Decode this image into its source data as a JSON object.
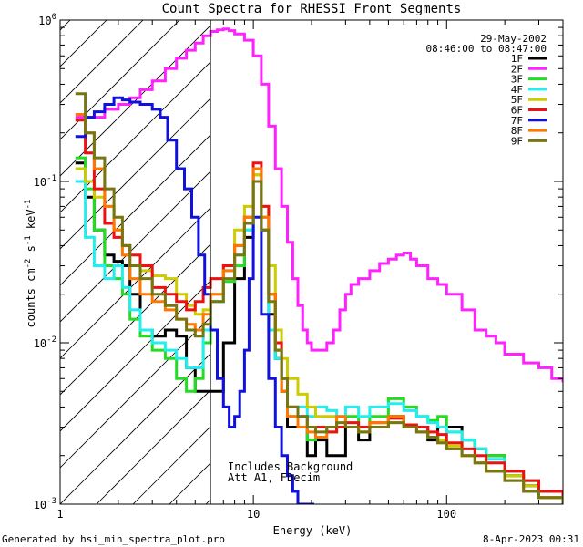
{
  "footer": {
    "left": "Generated by hsi_min_spectra_plot.pro",
    "right": "8-Apr-2023 00:31"
  },
  "colors": {
    "1F": "#000000",
    "2F": "#ff22ff",
    "3F": "#22dd22",
    "4F": "#22eeee",
    "5F": "#cccc00",
    "6F": "#ee1111",
    "7F": "#1111dd",
    "8F": "#ff7700",
    "9F": "#777711"
  },
  "chart_data": {
    "type": "line",
    "title": "Count Spectra for RHESSI Front Segments",
    "xlabel": "Energy (keV)",
    "ylabel": "counts cm",
    "ylabel_parts": {
      "base": "counts cm",
      "e1": "-2",
      "mid": " s",
      "e2": "-1",
      "mid2": " keV",
      "e3": "-1"
    },
    "x_scale": "log",
    "y_scale": "log",
    "xlim": [
      1,
      400
    ],
    "ylim": [
      0.001,
      1.0
    ],
    "x_ticks": [
      {
        "v": 1,
        "label": "1"
      },
      {
        "v": 10,
        "label": "10"
      },
      {
        "v": 100,
        "label": "100"
      }
    ],
    "y_ticks": [
      {
        "v": 0.001,
        "base": "10",
        "exp": "-3"
      },
      {
        "v": 0.01,
        "base": "10",
        "exp": "-2"
      },
      {
        "v": 0.1,
        "base": "10",
        "exp": "-1"
      },
      {
        "v": 1.0,
        "base": "10",
        "exp": "0"
      }
    ],
    "legend_header": [
      "29-May-2002",
      "08:46:00 to 08:47:00"
    ],
    "legend_placement": "top-right",
    "annotations": [
      "Includes Background",
      "Att A1, FDecim"
    ],
    "hatched_region_upper_x": 6,
    "series": [
      {
        "name": "1F",
        "x": [
          1.2,
          1.35,
          1.5,
          1.7,
          1.9,
          2.1,
          2.3,
          2.6,
          3.0,
          3.5,
          4.0,
          4.5,
          5.0,
          5.5,
          6.0,
          7,
          8,
          9,
          10,
          11,
          12,
          13,
          14,
          15,
          17,
          19,
          21,
          24,
          27,
          30,
          35,
          40,
          50,
          60,
          70,
          80,
          90,
          100,
          120,
          140,
          160,
          200,
          250,
          300,
          400
        ],
        "y": [
          0.13,
          0.08,
          0.05,
          0.035,
          0.032,
          0.03,
          0.02,
          0.012,
          0.011,
          0.012,
          0.011,
          0.007,
          0.005,
          0.005,
          0.005,
          0.01,
          0.025,
          0.045,
          0.1,
          0.05,
          0.015,
          0.008,
          0.005,
          0.003,
          0.003,
          0.002,
          0.0025,
          0.002,
          0.002,
          0.003,
          0.0025,
          0.003,
          0.0035,
          0.003,
          0.003,
          0.0025,
          0.003,
          0.003,
          0.0025,
          0.0022,
          0.002,
          0.0015,
          0.0013,
          0.0011,
          0.001
        ]
      },
      {
        "name": "2F",
        "x": [
          1.2,
          1.35,
          1.5,
          1.7,
          2.0,
          2.3,
          2.6,
          3.0,
          3.5,
          4.0,
          4.5,
          5.0,
          5.5,
          6.0,
          6.5,
          7.0,
          7.5,
          8,
          9,
          10,
          11,
          12,
          13,
          14,
          15,
          16,
          17,
          18,
          19,
          20,
          22,
          24,
          26,
          28,
          30,
          32,
          35,
          40,
          45,
          50,
          55,
          60,
          65,
          70,
          80,
          90,
          100,
          120,
          140,
          160,
          180,
          200,
          250,
          300,
          350,
          400
        ],
        "y": [
          0.25,
          0.25,
          0.25,
          0.28,
          0.3,
          0.33,
          0.37,
          0.42,
          0.5,
          0.58,
          0.65,
          0.72,
          0.8,
          0.85,
          0.87,
          0.88,
          0.86,
          0.82,
          0.75,
          0.6,
          0.4,
          0.22,
          0.12,
          0.07,
          0.042,
          0.025,
          0.017,
          0.012,
          0.01,
          0.009,
          0.009,
          0.01,
          0.012,
          0.016,
          0.02,
          0.023,
          0.025,
          0.028,
          0.031,
          0.033,
          0.035,
          0.036,
          0.033,
          0.03,
          0.025,
          0.023,
          0.02,
          0.016,
          0.012,
          0.011,
          0.01,
          0.0085,
          0.0075,
          0.007,
          0.006,
          0.0058
        ]
      },
      {
        "name": "3F",
        "x": [
          1.2,
          1.35,
          1.5,
          1.7,
          1.9,
          2.1,
          2.3,
          2.6,
          3.0,
          3.5,
          4.0,
          4.5,
          5.0,
          5.5,
          6.0,
          7,
          8,
          9,
          10,
          11,
          12,
          13,
          14,
          15,
          17,
          19,
          21,
          24,
          27,
          30,
          35,
          40,
          50,
          60,
          70,
          80,
          90,
          100,
          120,
          140,
          160,
          200,
          250,
          300,
          400
        ],
        "y": [
          0.14,
          0.09,
          0.05,
          0.03,
          0.025,
          0.02,
          0.014,
          0.011,
          0.009,
          0.008,
          0.006,
          0.005,
          0.006,
          0.01,
          0.018,
          0.024,
          0.03,
          0.05,
          0.11,
          0.06,
          0.02,
          0.009,
          0.005,
          0.0035,
          0.003,
          0.0025,
          0.003,
          0.0028,
          0.003,
          0.0035,
          0.003,
          0.0035,
          0.0045,
          0.004,
          0.0035,
          0.0033,
          0.0035,
          0.0028,
          0.0025,
          0.0022,
          0.002,
          0.0015,
          0.0014,
          0.0012,
          0.001
        ]
      },
      {
        "name": "4F",
        "x": [
          1.2,
          1.35,
          1.5,
          1.7,
          1.9,
          2.1,
          2.3,
          2.6,
          3.0,
          3.5,
          4.0,
          4.5,
          5.0,
          5.5,
          6.0,
          7,
          8,
          9,
          10,
          11,
          12,
          13,
          14,
          15,
          17,
          19,
          21,
          24,
          27,
          30,
          35,
          40,
          50,
          60,
          70,
          80,
          90,
          100,
          120,
          140,
          160,
          200,
          250,
          300,
          400
        ],
        "y": [
          0.1,
          0.045,
          0.03,
          0.025,
          0.03,
          0.022,
          0.016,
          0.012,
          0.01,
          0.009,
          0.008,
          0.007,
          0.007,
          0.012,
          0.018,
          0.028,
          0.035,
          0.05,
          0.1,
          0.05,
          0.012,
          0.008,
          0.006,
          0.004,
          0.004,
          0.0035,
          0.004,
          0.0038,
          0.0035,
          0.004,
          0.0035,
          0.004,
          0.0042,
          0.0038,
          0.0035,
          0.0032,
          0.003,
          0.0028,
          0.0025,
          0.0022,
          0.0019,
          0.0016,
          0.0014,
          0.0012,
          0.001
        ]
      },
      {
        "name": "5F",
        "x": [
          1.2,
          1.35,
          1.5,
          1.7,
          1.9,
          2.1,
          2.3,
          2.6,
          3.0,
          3.5,
          4.0,
          4.5,
          5.0,
          5.5,
          6.0,
          7,
          8,
          9,
          10,
          11,
          12,
          13,
          14,
          15,
          17,
          19,
          21,
          24,
          27,
          30,
          35,
          40,
          50,
          60,
          70,
          80,
          90,
          100,
          120,
          140,
          160,
          200,
          250,
          300,
          400
        ],
        "y": [
          0.12,
          0.1,
          0.08,
          0.07,
          0.05,
          0.04,
          0.03,
          0.028,
          0.026,
          0.025,
          0.02,
          0.017,
          0.015,
          0.016,
          0.02,
          0.03,
          0.05,
          0.07,
          0.11,
          0.07,
          0.03,
          0.012,
          0.008,
          0.006,
          0.0048,
          0.004,
          0.0035,
          0.0035,
          0.003,
          0.003,
          0.0028,
          0.003,
          0.0032,
          0.003,
          0.0028,
          0.0026,
          0.0025,
          0.0023,
          0.002,
          0.0018,
          0.0016,
          0.0015,
          0.0013,
          0.0011,
          0.001
        ]
      },
      {
        "name": "6F",
        "x": [
          1.2,
          1.35,
          1.5,
          1.7,
          1.9,
          2.1,
          2.3,
          2.6,
          3.0,
          3.5,
          4.0,
          4.5,
          5.0,
          5.5,
          6.0,
          7,
          8,
          9,
          10,
          11,
          12,
          13,
          14,
          15,
          17,
          19,
          21,
          24,
          27,
          30,
          35,
          40,
          50,
          60,
          70,
          80,
          90,
          100,
          120,
          140,
          160,
          200,
          250,
          300,
          400
        ],
        "y": [
          0.24,
          0.15,
          0.09,
          0.055,
          0.045,
          0.04,
          0.035,
          0.03,
          0.022,
          0.02,
          0.018,
          0.016,
          0.018,
          0.022,
          0.025,
          0.03,
          0.04,
          0.06,
          0.13,
          0.07,
          0.02,
          0.01,
          0.006,
          0.004,
          0.0035,
          0.003,
          0.003,
          0.0028,
          0.003,
          0.0032,
          0.003,
          0.0032,
          0.0034,
          0.0031,
          0.003,
          0.0028,
          0.0027,
          0.0024,
          0.0022,
          0.002,
          0.0018,
          0.0016,
          0.0014,
          0.0012,
          0.001
        ]
      },
      {
        "name": "7F",
        "x": [
          1.2,
          1.35,
          1.5,
          1.7,
          1.9,
          2.1,
          2.3,
          2.6,
          3.0,
          3.3,
          3.6,
          4.0,
          4.4,
          4.8,
          5.2,
          5.6,
          6.0,
          6.5,
          7.0,
          7.5,
          8.0,
          8.5,
          9,
          9.5,
          10,
          11,
          12,
          13,
          14,
          15,
          16,
          17,
          18,
          19,
          20
        ],
        "y": [
          0.19,
          0.25,
          0.27,
          0.3,
          0.33,
          0.32,
          0.31,
          0.3,
          0.28,
          0.25,
          0.18,
          0.12,
          0.09,
          0.06,
          0.035,
          0.02,
          0.012,
          0.006,
          0.004,
          0.003,
          0.0035,
          0.005,
          0.009,
          0.025,
          0.06,
          0.015,
          0.006,
          0.003,
          0.002,
          0.0015,
          0.0012,
          0.001,
          0.001,
          0.001,
          0.001
        ]
      },
      {
        "name": "8F",
        "x": [
          1.2,
          1.35,
          1.5,
          1.7,
          1.9,
          2.1,
          2.3,
          2.6,
          3.0,
          3.5,
          4.0,
          4.5,
          5.0,
          5.5,
          6.0,
          7,
          8,
          9,
          10,
          11,
          12,
          13,
          14,
          15,
          17,
          19,
          21,
          24,
          27,
          30,
          35,
          40,
          50,
          60,
          70,
          80,
          90,
          100,
          120,
          140,
          160,
          200,
          250,
          300,
          400
        ],
        "y": [
          0.26,
          0.2,
          0.12,
          0.07,
          0.05,
          0.035,
          0.025,
          0.02,
          0.018,
          0.016,
          0.014,
          0.013,
          0.012,
          0.015,
          0.02,
          0.028,
          0.04,
          0.06,
          0.12,
          0.06,
          0.02,
          0.009,
          0.005,
          0.0035,
          0.003,
          0.0028,
          0.0026,
          0.003,
          0.0035,
          0.003,
          0.0028,
          0.0032,
          0.0035,
          0.003,
          0.0028,
          0.0026,
          0.0024,
          0.0022,
          0.002,
          0.0018,
          0.0016,
          0.0014,
          0.0012,
          0.0011,
          0.001
        ]
      },
      {
        "name": "9F",
        "x": [
          1.2,
          1.35,
          1.5,
          1.7,
          1.9,
          2.1,
          2.3,
          2.6,
          3.0,
          3.5,
          4.0,
          4.5,
          5.0,
          5.5,
          6.0,
          7,
          8,
          9,
          10,
          11,
          12,
          13,
          14,
          15,
          17,
          19,
          21,
          24,
          27,
          30,
          35,
          40,
          50,
          60,
          70,
          80,
          90,
          100,
          120,
          140,
          160,
          200,
          250,
          300,
          400
        ],
        "y": [
          0.35,
          0.2,
          0.14,
          0.09,
          0.06,
          0.04,
          0.03,
          0.025,
          0.02,
          0.017,
          0.014,
          0.012,
          0.011,
          0.013,
          0.018,
          0.025,
          0.035,
          0.055,
          0.1,
          0.05,
          0.018,
          0.009,
          0.006,
          0.004,
          0.0035,
          0.003,
          0.0028,
          0.003,
          0.0032,
          0.003,
          0.0028,
          0.003,
          0.0032,
          0.003,
          0.0028,
          0.0026,
          0.0024,
          0.0022,
          0.002,
          0.0018,
          0.0016,
          0.0014,
          0.0012,
          0.0011,
          0.001
        ]
      }
    ]
  }
}
